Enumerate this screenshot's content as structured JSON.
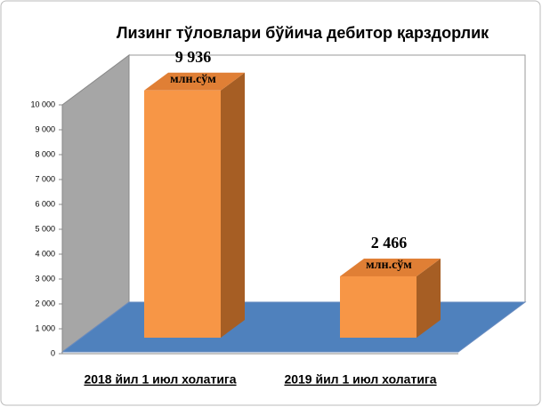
{
  "chart_data": {
    "type": "bar3d",
    "title": "Лизинг тўловлари бўйича дебитор қарздорлик",
    "categories": [
      "2018 йил 1 июл холатига",
      "2019 йил 1 июл холатига"
    ],
    "values": [
      9936,
      2466
    ],
    "value_labels": [
      "9 936",
      "2 466"
    ],
    "value_unit": "млн.сўм",
    "color": "#f79646",
    "ylim": [
      0,
      10000
    ],
    "yticks": [
      0,
      {
        "value": 1000,
        "label": "1 000"
      },
      {
        "value": 2000,
        "label": "2 000"
      },
      {
        "value": 3000,
        "label": "3 000"
      },
      {
        "value": 4000,
        "label": "4 000"
      },
      {
        "value": 5000,
        "label": "5 000"
      },
      {
        "value": 6000,
        "label": "6 000"
      },
      {
        "value": 7000,
        "label": "7 000"
      },
      {
        "value": 8000,
        "label": "8 000"
      },
      {
        "value": 9000,
        "label": "9 000"
      },
      {
        "value": 10000,
        "label": "10 000"
      }
    ],
    "grid": false
  }
}
